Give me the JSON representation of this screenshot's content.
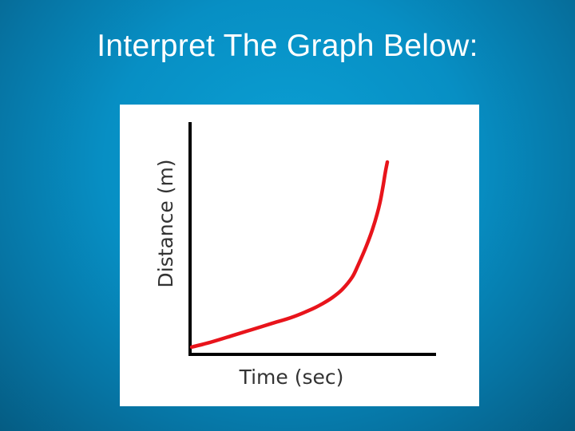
{
  "slide": {
    "title": "Interpret The Graph Below:"
  },
  "chart_data": {
    "type": "line",
    "title": "",
    "xlabel": "Time (sec)",
    "ylabel": "Distance (m)",
    "xlim": [
      0,
      10
    ],
    "ylim": [
      0,
      10
    ],
    "ticks": "none",
    "grid": false,
    "legend": "none",
    "series": [
      {
        "color": "#e8141b",
        "x": [
          0,
          1,
          2,
          3,
          4,
          5,
          6,
          6.5,
          7,
          7.5,
          8,
          8.3,
          8.7,
          9,
          9.25,
          9.4,
          9.55,
          9.65,
          9.75
        ],
        "y": [
          0.2,
          0.45,
          0.75,
          1.05,
          1.35,
          1.65,
          2.05,
          2.3,
          2.6,
          3.0,
          3.6,
          4.2,
          5.1,
          5.9,
          6.7,
          7.3,
          8.1,
          8.7,
          9.2
        ]
      }
    ]
  },
  "colors": {
    "background": "#0a93c8",
    "axis": "#000000",
    "label_text": "#333333",
    "curve": "#e8141b"
  }
}
